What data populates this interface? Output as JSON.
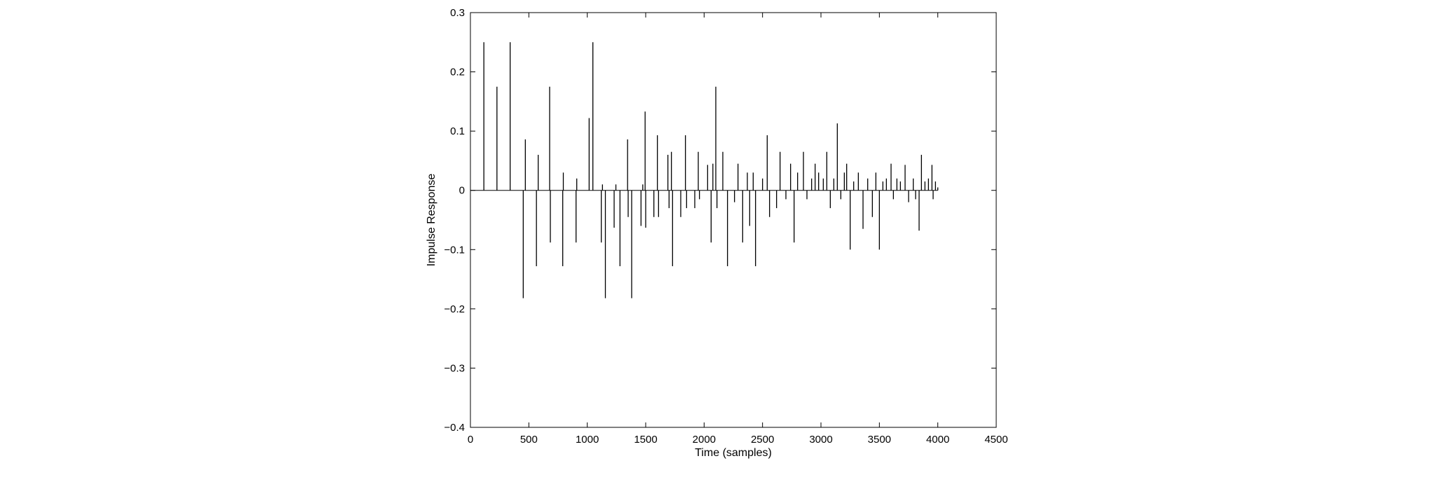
{
  "chart_data": {
    "type": "line",
    "xlabel": "Time (samples)",
    "ylabel": "Impulse Response",
    "xlim": [
      0,
      4500
    ],
    "ylim": [
      -0.4,
      0.3
    ],
    "xticks": [
      0,
      500,
      1000,
      1500,
      2000,
      2500,
      3000,
      3500,
      4000,
      4500
    ],
    "xtick_labels": [
      "0",
      "500",
      "1000",
      "1500",
      "2000",
      "2500",
      "3000",
      "3500",
      "4000",
      "4500"
    ],
    "yticks": [
      -0.4,
      -0.3,
      -0.2,
      -0.1,
      0,
      0.1,
      0.2,
      0.3
    ],
    "ytick_labels": [
      "−0.4",
      "−0.3",
      "−0.2",
      "−0.1",
      "0",
      "0.1",
      "0.2",
      "0.3"
    ],
    "grid": false,
    "series_color": "#000000",
    "impulses": [
      [
        115,
        0.25
      ],
      [
        227,
        0.175
      ],
      [
        340,
        0.25
      ],
      [
        452,
        -0.182
      ],
      [
        470,
        0.086
      ],
      [
        565,
        -0.128
      ],
      [
        580,
        0.06
      ],
      [
        678,
        0.175
      ],
      [
        684,
        -0.088
      ],
      [
        790,
        -0.128
      ],
      [
        795,
        0.03
      ],
      [
        904,
        -0.088
      ],
      [
        910,
        0.02
      ],
      [
        1016,
        0.122
      ],
      [
        1048,
        0.25
      ],
      [
        1120,
        -0.088
      ],
      [
        1130,
        0.01
      ],
      [
        1155,
        -0.182
      ],
      [
        1230,
        -0.063
      ],
      [
        1245,
        0.01
      ],
      [
        1280,
        -0.128
      ],
      [
        1345,
        0.086
      ],
      [
        1350,
        -0.045
      ],
      [
        1380,
        -0.182
      ],
      [
        1460,
        -0.06
      ],
      [
        1475,
        0.01
      ],
      [
        1495,
        0.133
      ],
      [
        1500,
        -0.063
      ],
      [
        1570,
        -0.045
      ],
      [
        1600,
        0.093
      ],
      [
        1610,
        -0.045
      ],
      [
        1690,
        0.06
      ],
      [
        1700,
        -0.03
      ],
      [
        1720,
        0.065
      ],
      [
        1730,
        -0.128
      ],
      [
        1800,
        -0.045
      ],
      [
        1840,
        0.093
      ],
      [
        1850,
        -0.03
      ],
      [
        1920,
        -0.03
      ],
      [
        1950,
        0.065
      ],
      [
        1960,
        -0.015
      ],
      [
        2030,
        0.043
      ],
      [
        2060,
        -0.088
      ],
      [
        2075,
        0.045
      ],
      [
        2100,
        0.175
      ],
      [
        2110,
        -0.03
      ],
      [
        2160,
        0.065
      ],
      [
        2200,
        -0.128
      ],
      [
        2260,
        -0.02
      ],
      [
        2290,
        0.045
      ],
      [
        2330,
        -0.088
      ],
      [
        2370,
        0.03
      ],
      [
        2390,
        -0.06
      ],
      [
        2420,
        0.03
      ],
      [
        2440,
        -0.128
      ],
      [
        2500,
        0.02
      ],
      [
        2540,
        0.093
      ],
      [
        2560,
        -0.045
      ],
      [
        2620,
        -0.03
      ],
      [
        2650,
        0.065
      ],
      [
        2700,
        -0.015
      ],
      [
        2740,
        0.045
      ],
      [
        2770,
        -0.088
      ],
      [
        2800,
        0.03
      ],
      [
        2850,
        0.065
      ],
      [
        2880,
        -0.015
      ],
      [
        2920,
        0.02
      ],
      [
        2950,
        0.045
      ],
      [
        2980,
        0.03
      ],
      [
        3020,
        0.02
      ],
      [
        3050,
        0.065
      ],
      [
        3080,
        -0.03
      ],
      [
        3110,
        0.02
      ],
      [
        3140,
        0.113
      ],
      [
        3170,
        -0.015
      ],
      [
        3200,
        0.03
      ],
      [
        3220,
        0.045
      ],
      [
        3250,
        -0.1
      ],
      [
        3280,
        0.015
      ],
      [
        3320,
        0.03
      ],
      [
        3360,
        -0.065
      ],
      [
        3400,
        0.02
      ],
      [
        3440,
        -0.045
      ],
      [
        3470,
        0.03
      ],
      [
        3500,
        -0.1
      ],
      [
        3530,
        0.015
      ],
      [
        3560,
        0.02
      ],
      [
        3600,
        0.045
      ],
      [
        3620,
        -0.015
      ],
      [
        3650,
        0.02
      ],
      [
        3680,
        0.015
      ],
      [
        3720,
        0.043
      ],
      [
        3750,
        -0.02
      ],
      [
        3790,
        0.02
      ],
      [
        3810,
        -0.015
      ],
      [
        3840,
        -0.068
      ],
      [
        3860,
        0.06
      ],
      [
        3890,
        0.015
      ],
      [
        3920,
        0.02
      ],
      [
        3950,
        0.043
      ],
      [
        3960,
        -0.015
      ],
      [
        3980,
        0.015
      ],
      [
        4000,
        0.005
      ]
    ]
  }
}
